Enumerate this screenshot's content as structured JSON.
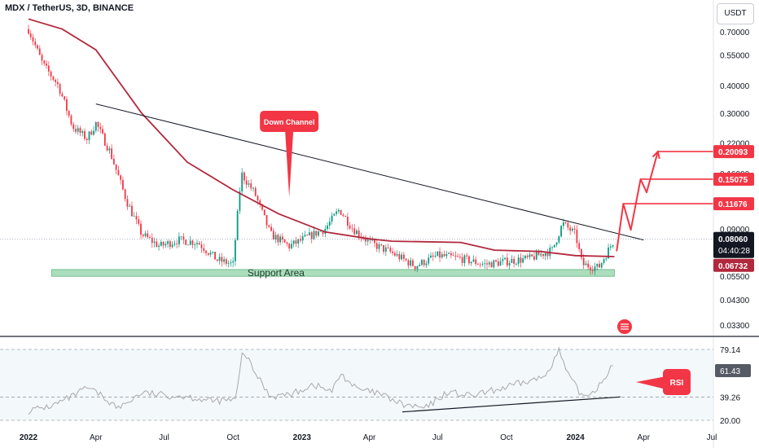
{
  "header": {
    "title": "MDX / TetherUS, 3D, BINANCE",
    "currency_button": "USDT"
  },
  "annotations": {
    "down_channel": "Down Channel",
    "support_area": "Support Area",
    "rsi": "RSI"
  },
  "colors": {
    "up_candle": "#089981",
    "down_candle": "#f23645",
    "ma_line": "#b2283d",
    "trend_line": "#131722",
    "support_fill": "#8fd3a6",
    "target_color": "#f23645",
    "projection": "#f23645",
    "rsi_line": "#a9a9a9"
  },
  "chart_data": [
    {
      "type": "candlestick",
      "title": "MDX / TetherUS, 3D, BINANCE",
      "y_scale": "log",
      "y_ticks": [
        "0.70000",
        "0.55000",
        "0.40000",
        "0.30000",
        "0.22000",
        "0.16000",
        "0.12000",
        "0.09000",
        "0.07000",
        "0.05500",
        "0.04300",
        "0.03300"
      ],
      "x_ticks": [
        "2022",
        "Apr",
        "Jul",
        "Oct",
        "2023",
        "Apr",
        "Jul",
        "Oct",
        "2024",
        "Apr",
        "Jul"
      ],
      "grid": false,
      "ma_series": [
        {
          "date": "2022-01-01",
          "value": 0.8
        },
        {
          "date": "2022-02-15",
          "value": 0.72
        },
        {
          "date": "2022-04-01",
          "value": 0.58
        },
        {
          "date": "2022-06-01",
          "value": 0.3
        },
        {
          "date": "2022-08-01",
          "value": 0.18
        },
        {
          "date": "2022-10-01",
          "value": 0.135
        },
        {
          "date": "2022-12-01",
          "value": 0.105
        },
        {
          "date": "2023-02-01",
          "value": 0.087
        },
        {
          "date": "2023-04-01",
          "value": 0.081
        },
        {
          "date": "2023-05-01",
          "value": 0.079
        },
        {
          "date": "2023-08-01",
          "value": 0.078
        },
        {
          "date": "2023-09-15",
          "value": 0.072
        },
        {
          "date": "2023-11-15",
          "value": 0.071
        },
        {
          "date": "2024-01-01",
          "value": 0.068
        },
        {
          "date": "2024-02-22",
          "value": 0.0673
        }
      ],
      "close_path": [
        {
          "date": "2022-01-01",
          "value": 0.72
        },
        {
          "date": "2022-01-20",
          "value": 0.5
        },
        {
          "date": "2022-02-10",
          "value": 0.4
        },
        {
          "date": "2022-03-01",
          "value": 0.26
        },
        {
          "date": "2022-03-20",
          "value": 0.23
        },
        {
          "date": "2022-04-01",
          "value": 0.27
        },
        {
          "date": "2022-04-20",
          "value": 0.2
        },
        {
          "date": "2022-05-12",
          "value": 0.12
        },
        {
          "date": "2022-06-01",
          "value": 0.085
        },
        {
          "date": "2022-06-25",
          "value": 0.075
        },
        {
          "date": "2022-07-20",
          "value": 0.08
        },
        {
          "date": "2022-08-15",
          "value": 0.078
        },
        {
          "date": "2022-09-10",
          "value": 0.065
        },
        {
          "date": "2022-10-01",
          "value": 0.062
        },
        {
          "date": "2022-10-12",
          "value": 0.16
        },
        {
          "date": "2022-10-30",
          "value": 0.13
        },
        {
          "date": "2022-11-20",
          "value": 0.085
        },
        {
          "date": "2022-12-15",
          "value": 0.075
        },
        {
          "date": "2023-01-10",
          "value": 0.083
        },
        {
          "date": "2023-02-01",
          "value": 0.09
        },
        {
          "date": "2023-02-20",
          "value": 0.11
        },
        {
          "date": "2023-03-10",
          "value": 0.09
        },
        {
          "date": "2023-04-01",
          "value": 0.078
        },
        {
          "date": "2023-05-01",
          "value": 0.07
        },
        {
          "date": "2023-06-01",
          "value": 0.061
        },
        {
          "date": "2023-07-01",
          "value": 0.068
        },
        {
          "date": "2023-08-01",
          "value": 0.066
        },
        {
          "date": "2023-09-01",
          "value": 0.062
        },
        {
          "date": "2023-10-01",
          "value": 0.064
        },
        {
          "date": "2023-11-01",
          "value": 0.066
        },
        {
          "date": "2023-12-01",
          "value": 0.072
        },
        {
          "date": "2023-12-15",
          "value": 0.095
        },
        {
          "date": "2024-01-01",
          "value": 0.085
        },
        {
          "date": "2024-01-10",
          "value": 0.062
        },
        {
          "date": "2024-02-01",
          "value": 0.06
        },
        {
          "date": "2024-02-22",
          "value": 0.0806
        }
      ],
      "trend_line": [
        {
          "date": "2022-04-01",
          "value": 0.33
        },
        {
          "date": "2024-04-01",
          "value": 0.08
        }
      ],
      "support_area": {
        "from": "2022-02-01",
        "to": "2024-02-22",
        "low": 0.0548,
        "high": 0.0588,
        "label": "Support Area"
      },
      "targets": [
        {
          "value": 0.11676,
          "label": "0.11676"
        },
        {
          "value": 0.15075,
          "label": "0.15075"
        },
        {
          "value": 0.20093,
          "label": "0.20093"
        }
      ],
      "current_price": {
        "value": 0.0806,
        "label": "0.08060",
        "countdown": "04:40:28"
      },
      "ma_value": {
        "value": 0.06732,
        "label": "0.06732"
      },
      "projection_path": [
        {
          "date": "2024-02-25",
          "value": 0.0712
        },
        {
          "date": "2024-03-05",
          "value": 0.11676
        },
        {
          "date": "2024-03-15",
          "value": 0.0888
        },
        {
          "date": "2024-03-28",
          "value": 0.15075
        },
        {
          "date": "2024-04-05",
          "value": 0.1314
        },
        {
          "date": "2024-04-20",
          "value": 0.20093
        }
      ],
      "callout": {
        "label": "Down Channel",
        "date": "2022-12-15",
        "value": 0.125
      }
    },
    {
      "type": "line",
      "title": "RSI",
      "levels": [
        {
          "value": 79.14,
          "label": "79.14"
        },
        {
          "value": 61.43,
          "label": "61.43"
        },
        {
          "value": 39.26,
          "label": "39.26"
        },
        {
          "value": 20.0,
          "label": "20.00"
        }
      ],
      "current_value": 61.43,
      "series": [
        {
          "date": "2022-01-01",
          "value": 28
        },
        {
          "date": "2022-02-01",
          "value": 32
        },
        {
          "date": "2022-03-01",
          "value": 40
        },
        {
          "date": "2022-03-20",
          "value": 47
        },
        {
          "date": "2022-04-05",
          "value": 42
        },
        {
          "date": "2022-05-01",
          "value": 30
        },
        {
          "date": "2022-06-01",
          "value": 43
        },
        {
          "date": "2022-07-01",
          "value": 41
        },
        {
          "date": "2022-08-01",
          "value": 40
        },
        {
          "date": "2022-09-01",
          "value": 36
        },
        {
          "date": "2022-10-05",
          "value": 37
        },
        {
          "date": "2022-10-14",
          "value": 79
        },
        {
          "date": "2022-10-28",
          "value": 62
        },
        {
          "date": "2022-11-20",
          "value": 40
        },
        {
          "date": "2022-12-20",
          "value": 42
        },
        {
          "date": "2023-01-15",
          "value": 50
        },
        {
          "date": "2023-02-10",
          "value": 44
        },
        {
          "date": "2023-02-22",
          "value": 59
        },
        {
          "date": "2023-03-15",
          "value": 46
        },
        {
          "date": "2023-04-15",
          "value": 42
        },
        {
          "date": "2023-05-15",
          "value": 33
        },
        {
          "date": "2023-06-15",
          "value": 30
        },
        {
          "date": "2023-07-15",
          "value": 44
        },
        {
          "date": "2023-08-15",
          "value": 40
        },
        {
          "date": "2023-09-15",
          "value": 45
        },
        {
          "date": "2023-10-15",
          "value": 50
        },
        {
          "date": "2023-11-20",
          "value": 56
        },
        {
          "date": "2023-12-10",
          "value": 78
        },
        {
          "date": "2023-12-22",
          "value": 58
        },
        {
          "date": "2024-01-10",
          "value": 40
        },
        {
          "date": "2024-01-25",
          "value": 44
        },
        {
          "date": "2024-02-10",
          "value": 56
        },
        {
          "date": "2024-02-17",
          "value": 66
        },
        {
          "date": "2024-02-22",
          "value": 61.43
        }
      ],
      "trend_line": [
        {
          "date": "2023-05-15",
          "value": 27
        },
        {
          "date": "2024-03-01",
          "value": 39.5
        }
      ]
    }
  ]
}
